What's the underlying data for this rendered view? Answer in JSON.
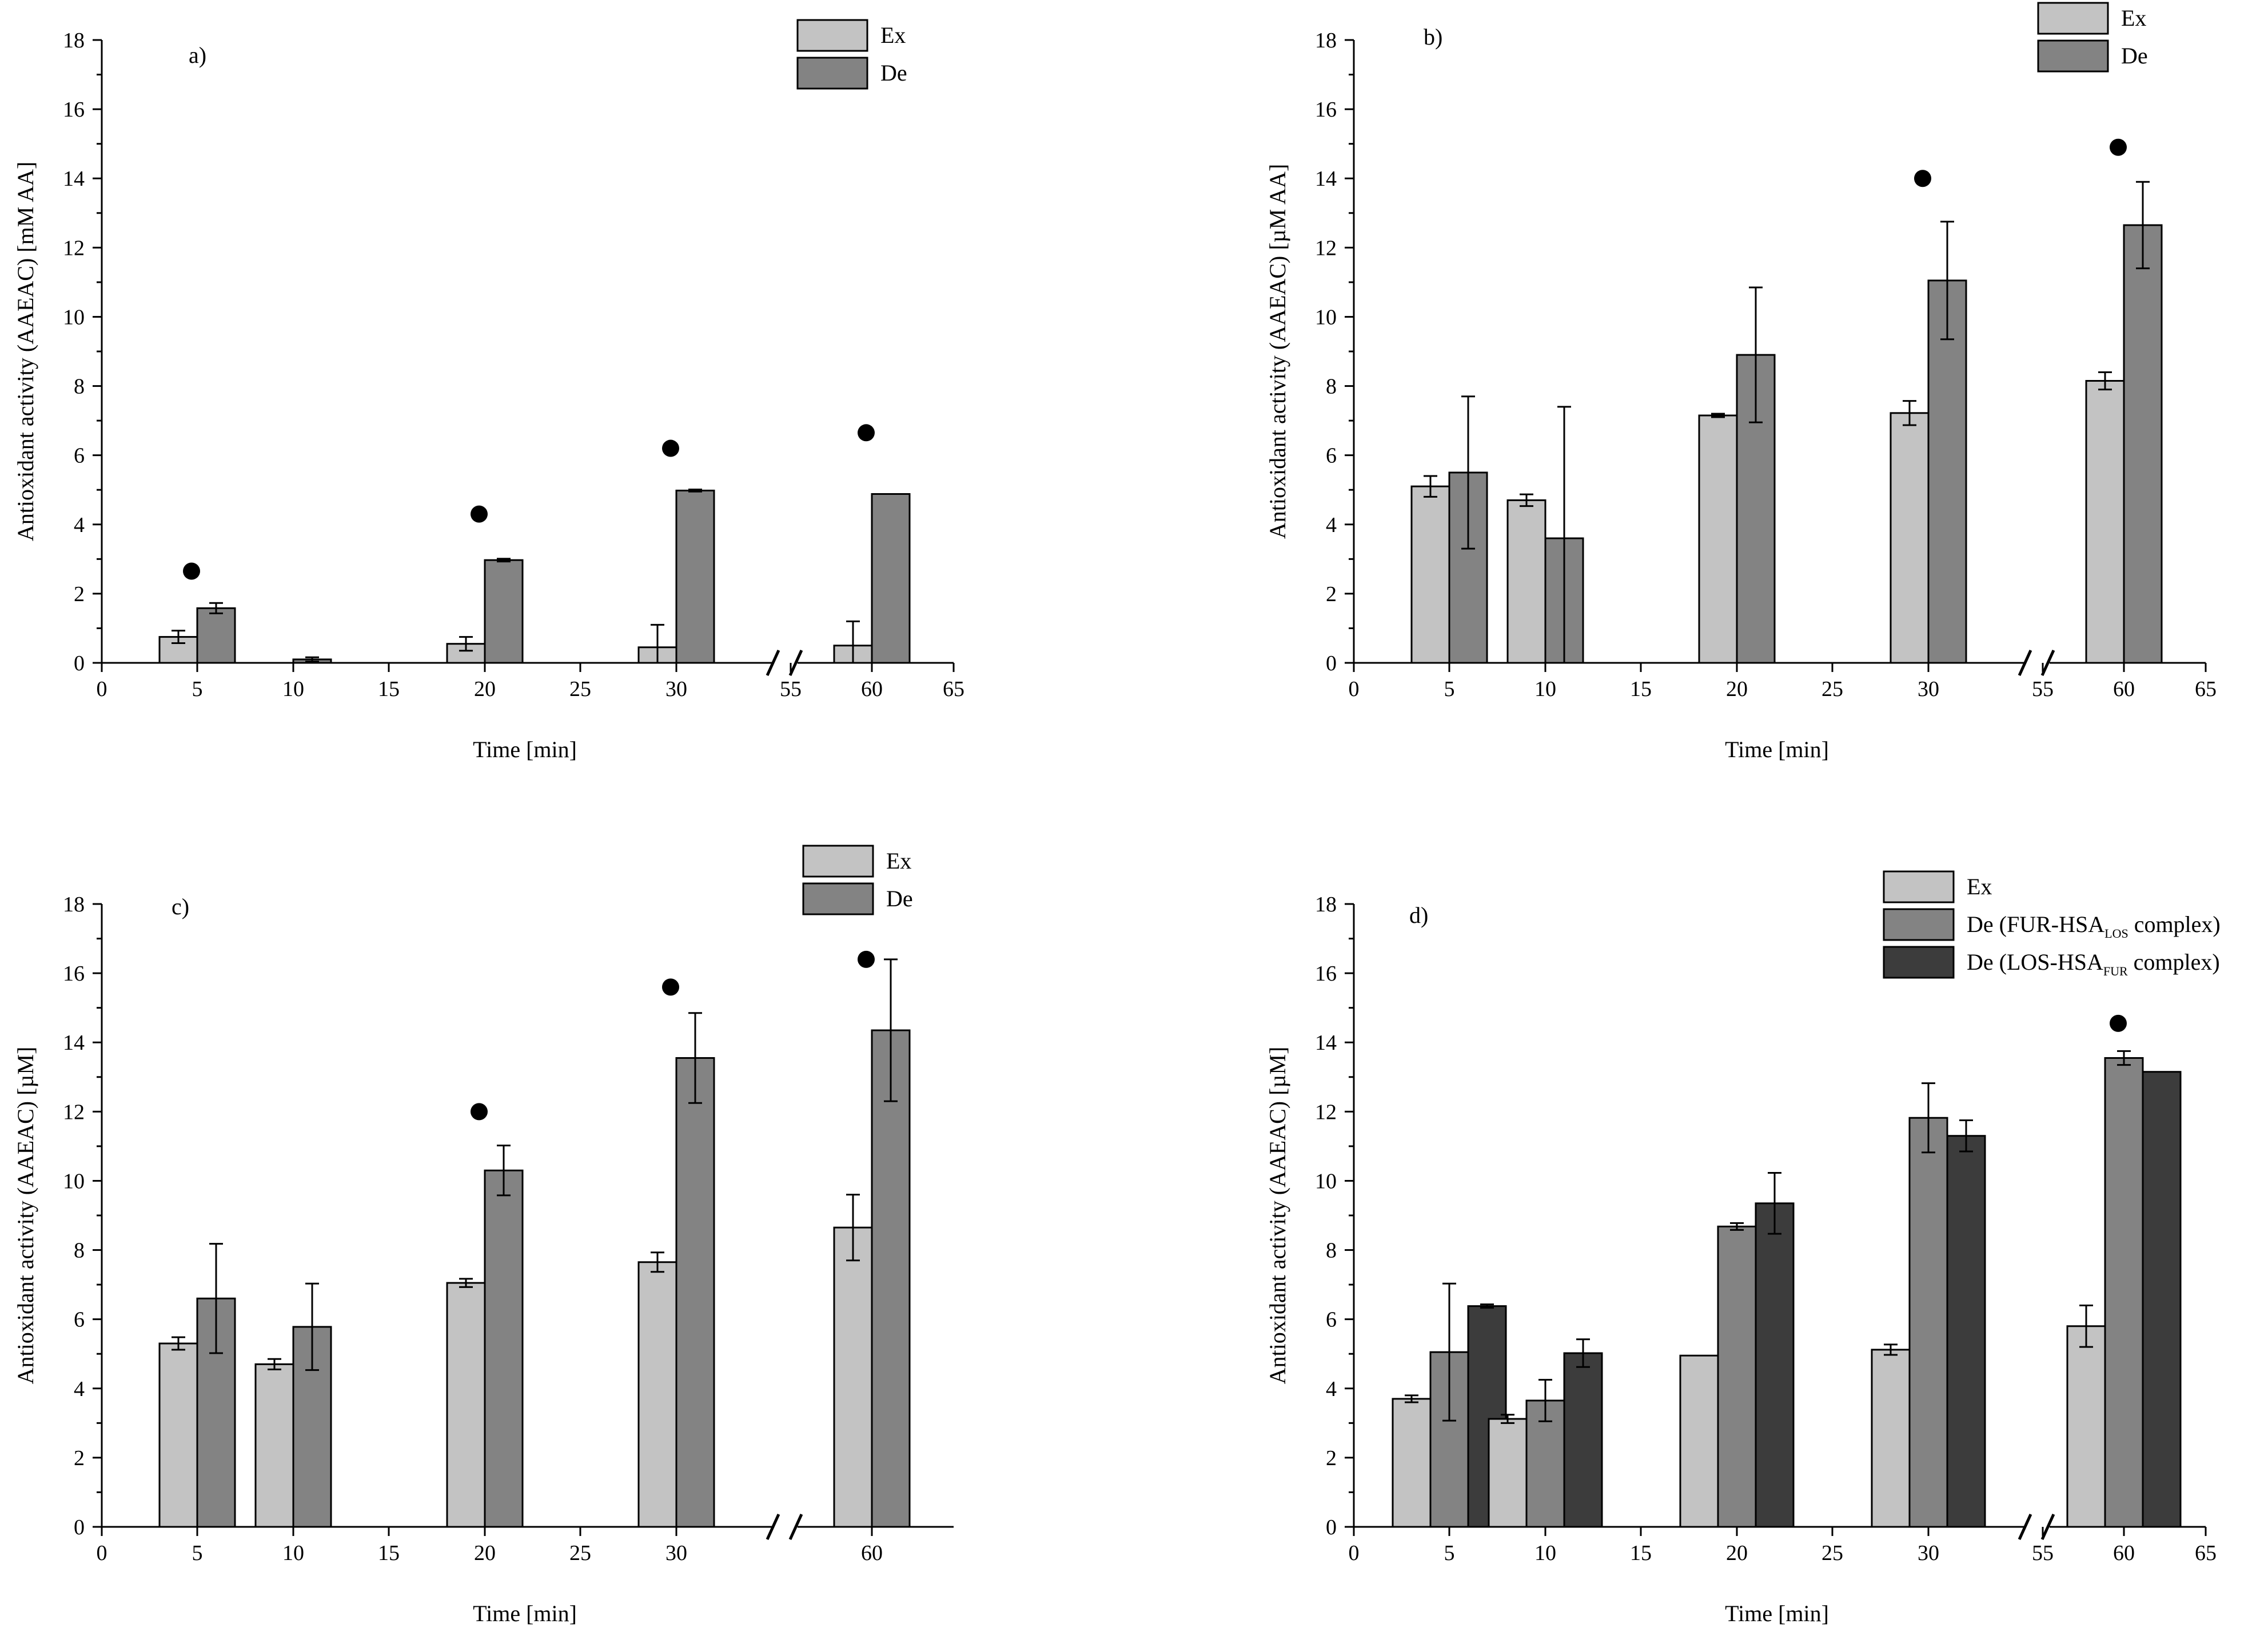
{
  "chart_data": [
    {
      "type": "bar",
      "panel": "a)",
      "xlabel": "Time [min]",
      "ylabel": "Antioxidant activity (AAEAC) [mM AA]",
      "ylim": [
        0,
        18
      ],
      "y_ticks": [
        "0",
        "2",
        "4",
        "6",
        "8",
        "10",
        "12",
        "14",
        "16",
        "18"
      ],
      "x_ticks": [
        "0",
        "5",
        "10",
        "15",
        "20",
        "25",
        "30",
        "55",
        "60",
        "65"
      ],
      "axis_break": true,
      "legend_position": "top-right",
      "categories": [
        5,
        10,
        20,
        30,
        60
      ],
      "series": [
        {
          "name": "Ex",
          "color": "#c3c3c3",
          "values": [
            0.75,
            0.0,
            0.55,
            0.45,
            0.5
          ],
          "errors": [
            0.18,
            0.0,
            0.2,
            0.65,
            0.7
          ]
        },
        {
          "name": "De",
          "color": "#838383",
          "values": [
            1.58,
            0.1,
            2.97,
            4.98,
            4.88
          ],
          "errors": [
            0.15,
            0.06,
            0.04,
            0.03,
            0.0
          ]
        }
      ],
      "significance_markers": [
        {
          "x": 5,
          "y": 2.65
        },
        {
          "x": 20,
          "y": 4.3
        },
        {
          "x": 30,
          "y": 6.2
        },
        {
          "x": 60,
          "y": 6.65
        }
      ]
    },
    {
      "type": "bar",
      "panel": "b)",
      "xlabel": "Time [min]",
      "ylabel": "Antioxidant activity (AAEAC) [µM AA]",
      "ylim": [
        0,
        18
      ],
      "y_ticks": [
        "0",
        "2",
        "4",
        "6",
        "8",
        "10",
        "12",
        "14",
        "16",
        "18"
      ],
      "x_ticks": [
        "0",
        "5",
        "10",
        "15",
        "20",
        "25",
        "30",
        "55",
        "60",
        "65"
      ],
      "axis_break": true,
      "legend_position": "top-right",
      "categories": [
        5,
        10,
        20,
        30,
        60
      ],
      "series": [
        {
          "name": "Ex",
          "color": "#c3c3c3",
          "values": [
            5.1,
            4.7,
            7.15,
            7.22,
            8.15
          ],
          "errors": [
            0.3,
            0.17,
            0.05,
            0.35,
            0.25
          ]
        },
        {
          "name": "De",
          "color": "#838383",
          "values": [
            5.5,
            3.6,
            8.9,
            11.05,
            12.65
          ],
          "errors": [
            2.2,
            3.8,
            1.95,
            1.7,
            1.25
          ]
        }
      ],
      "significance_markers": [
        {
          "x": 30,
          "y": 14.0
        },
        {
          "x": 60,
          "y": 14.9
        }
      ]
    },
    {
      "type": "bar",
      "panel": "c)",
      "xlabel": "Time [min]",
      "ylabel": "Antioxidant activity (AAEAC) [µM]",
      "ylim": [
        0,
        18
      ],
      "y_ticks": [
        "0",
        "2",
        "4",
        "6",
        "8",
        "10",
        "12",
        "14",
        "16",
        "18"
      ],
      "x_ticks": [
        "0",
        "5",
        "10",
        "15",
        "20",
        "25",
        "30",
        "60"
      ],
      "axis_break": true,
      "legend_position": "top-right",
      "categories": [
        5,
        10,
        20,
        30,
        60
      ],
      "series": [
        {
          "name": "Ex",
          "color": "#c3c3c3",
          "values": [
            5.3,
            4.7,
            7.05,
            7.65,
            8.65
          ],
          "errors": [
            0.18,
            0.15,
            0.12,
            0.28,
            0.95
          ]
        },
        {
          "name": "De",
          "color": "#838383",
          "values": [
            6.6,
            5.78,
            10.3,
            13.55,
            14.35
          ],
          "errors": [
            1.58,
            1.25,
            0.72,
            1.3,
            2.05
          ]
        }
      ],
      "significance_markers": [
        {
          "x": 20,
          "y": 12.0
        },
        {
          "x": 30,
          "y": 15.6
        },
        {
          "x": 60,
          "y": 16.4
        }
      ]
    },
    {
      "type": "bar",
      "panel": "d)",
      "xlabel": "Time [min]",
      "ylabel": "Antioxidant activity (AAEAC) [µM]",
      "ylim": [
        0,
        18
      ],
      "y_ticks": [
        "0",
        "2",
        "4",
        "6",
        "8",
        "10",
        "12",
        "14",
        "16",
        "18"
      ],
      "x_ticks": [
        "0",
        "5",
        "10",
        "15",
        "20",
        "25",
        "30",
        "55",
        "60",
        "65"
      ],
      "axis_break": true,
      "legend_position": "top-right",
      "categories": [
        5,
        10,
        20,
        30,
        60
      ],
      "series": [
        {
          "name": "Ex",
          "color": "#c3c3c3",
          "values": [
            3.7,
            3.12,
            4.95,
            5.12,
            5.8
          ],
          "errors": [
            0.1,
            0.12,
            0.0,
            0.15,
            0.6
          ]
        },
        {
          "name": "De (FUR-HSA",
          "name_sub": "LOS",
          "name_suffix": " complex)",
          "color": "#838383",
          "values": [
            5.05,
            3.65,
            8.68,
            11.82,
            13.55
          ],
          "errors": [
            1.98,
            0.6,
            0.1,
            1.0,
            0.2
          ]
        },
        {
          "name": "De (LOS-HSA",
          "name_sub": "FUR",
          "name_suffix": " complex)",
          "color": "#3c3c3c",
          "values": [
            6.38,
            5.02,
            9.35,
            11.3,
            13.15
          ],
          "errors": [
            0.05,
            0.4,
            0.88,
            0.45,
            0.0
          ]
        }
      ],
      "significance_markers": [
        {
          "x": 60,
          "y": 14.55
        }
      ]
    }
  ]
}
